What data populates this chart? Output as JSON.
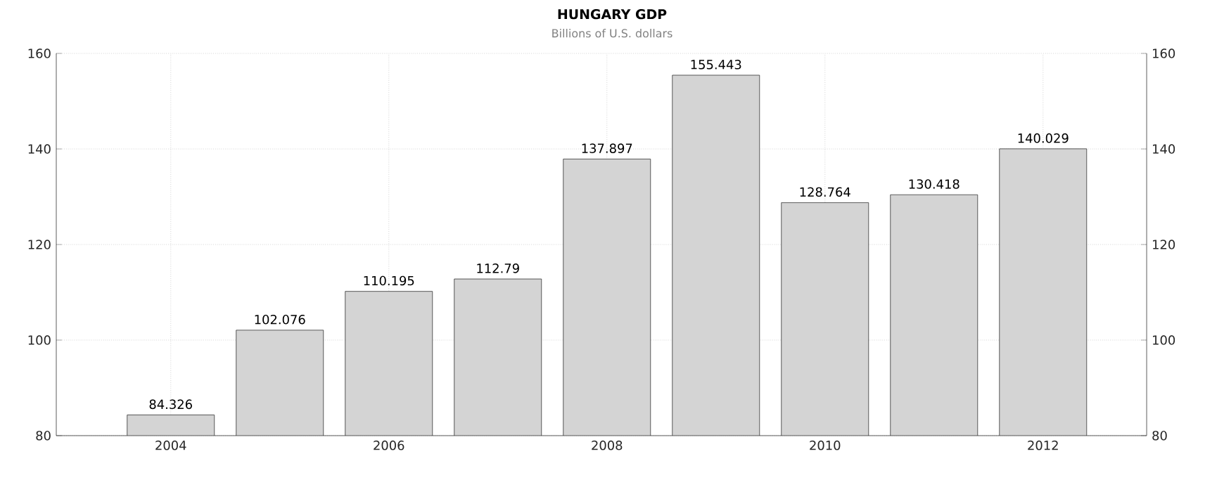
{
  "chart_data": {
    "type": "bar",
    "title": "HUNGARY GDP",
    "subtitle": "Billions of U.S. dollars",
    "categories": [
      "2004",
      null,
      "2006",
      null,
      "2008",
      null,
      "2010",
      null,
      "2012"
    ],
    "values": [
      84.326,
      102.076,
      110.195,
      112.79,
      137.897,
      155.443,
      128.764,
      130.418,
      140.029
    ],
    "color": "#d4d4d4",
    "data_labels": true,
    "ylim": [
      80,
      160
    ],
    "yticks": [
      80,
      100,
      120,
      140,
      160
    ],
    "y2lim": [
      80,
      160
    ],
    "y2ticks": [
      80,
      100,
      120,
      140,
      160
    ],
    "grid": true
  }
}
